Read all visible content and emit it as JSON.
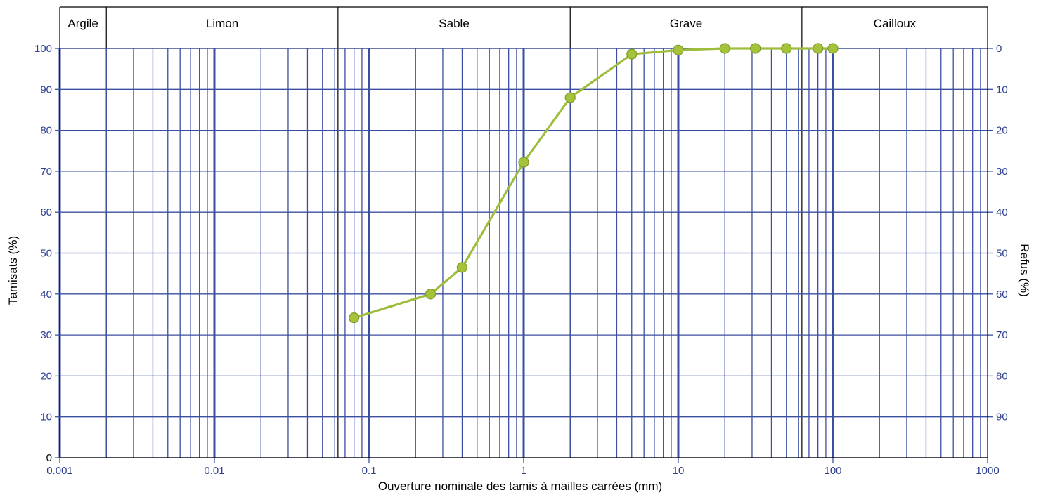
{
  "chart_data": {
    "type": "line",
    "xscale": "log",
    "xlim": [
      0.001,
      1000
    ],
    "ylim": [
      0,
      100
    ],
    "x_ticks": [
      "0.001",
      "0.01",
      "0.1",
      "1",
      "10",
      "100",
      "1000"
    ],
    "y_ticks": [
      "0",
      "10",
      "20",
      "30",
      "40",
      "50",
      "60",
      "70",
      "80",
      "90",
      "100"
    ],
    "y2_ticks": [
      "0",
      "10",
      "20",
      "30",
      "40",
      "50",
      "60",
      "70",
      "80",
      "90"
    ],
    "xlabel": "Ouverture nominale des tamis à mailles carrées (mm)",
    "ylabel": "Tamisats (%)",
    "y2label": "Refus (%)",
    "grid": true,
    "zones": [
      {
        "label": "Argile",
        "from": 0.001,
        "to": 0.002
      },
      {
        "label": "Limon",
        "from": 0.002,
        "to": 0.063
      },
      {
        "label": "Sable",
        "from": 0.063,
        "to": 2
      },
      {
        "label": "Grave",
        "from": 2,
        "to": 63
      },
      {
        "label": "Cailloux",
        "from": 63,
        "to": 1000
      }
    ],
    "series": [
      {
        "x": [
          0.08,
          0.25,
          0.4,
          1,
          2,
          5,
          10,
          20,
          31.5,
          50,
          80,
          100
        ],
        "y": [
          34.2,
          40,
          46.5,
          72.2,
          88,
          98.6,
          99.6,
          100,
          100,
          100,
          100,
          100
        ]
      }
    ],
    "colors": {
      "line": "#9fbd3c",
      "marker": "#a4c23a",
      "marker_edge": "#7f9a27",
      "grid": "#3b4fa0",
      "zone_border": "#000000",
      "tick_text": "#2e3f8f"
    }
  }
}
